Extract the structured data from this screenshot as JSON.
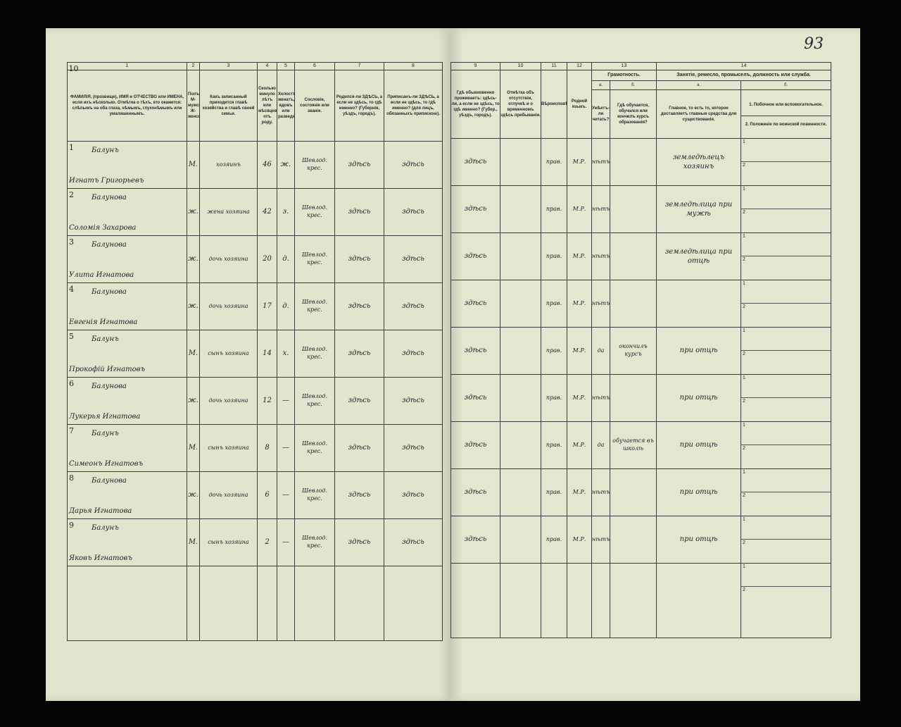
{
  "page_number": "93",
  "left_columns": [
    {
      "num": "1",
      "header": "ФАМИЛІЯ, (прозвище), ИМЯ и ОТЧЕСТВО или ИМЕНА, если ихъ нѣсколько. Отмѣтка о тѣхъ, кто окажется: слѣпымъ на оба глаза, нѣмымъ, глухонѣмымъ или умалишеннымъ."
    },
    {
      "num": "2",
      "header": "Полъ. М-мужской. Ж-женский."
    },
    {
      "num": "3",
      "header": "Какъ записанный приходится главѣ хозяйства и главѣ своей семьи."
    },
    {
      "num": "4",
      "header": "Сколько минуло лѣтъ или мѣсяцевъ отъ роду."
    },
    {
      "num": "5",
      "header": "Холостъ, женатъ, вдовъ или разведенъ."
    },
    {
      "num": "6",
      "header": "Сословіе, состояніе или званіе."
    },
    {
      "num": "7",
      "header": "Родился-ли ЗДѢСЬ, а если не здѣсь, то гдѣ именно? (Губернія, уѣздъ, городъ)."
    },
    {
      "num": "8",
      "header": "Приписанъ-ли ЗДѢСЬ, а если не здѣсь, то гдѣ именно? (для лицъ, обязанныхъ припискою)."
    }
  ],
  "right_columns": [
    {
      "num": "9",
      "header": "Гдѣ обыкновенно проживаетъ: здѣсь-ли, а если не здѣсь, то гдѣ именно? (Губер., уѣздъ, городъ)."
    },
    {
      "num": "10",
      "header": "Отмѣтка объ отсутствіи, отлучкѣ и о временномъ здѣсь пребываніи."
    },
    {
      "num": "11",
      "header": "Вѣроисповѣданіе."
    },
    {
      "num": "12",
      "header": "Родной языкъ."
    },
    {
      "num": "13",
      "group": "Грамотность.",
      "sub_a": "а.",
      "sub_b": "б.",
      "header_a": "Умѣетъ-ли читать?",
      "header_b": "Гдѣ обучается, обучался или кончилъ курсъ образованія?"
    },
    {
      "num": "14",
      "group": "Занятіе, ремесло, промыселъ, должность или служба.",
      "sub_a": "а.",
      "sub_b": "б.",
      "header_a": "Главное, то есть то, которое доставляетъ главныя средства для существованія.",
      "header_b_1": "1. Побочное или вспомогательное.",
      "header_b_2": "2. Положеніе по воинской повинности."
    }
  ],
  "rows": [
    {
      "n": "1",
      "surname": "Балунъ",
      "given": "Игнатъ Григорьевъ",
      "sex": "М.",
      "relation": "хозяинъ",
      "age": "46",
      "marital": "ж.",
      "estate": "Шевлод. крес.",
      "born": "здѣсь",
      "registered": "здѣсь",
      "lives": "здѣсь",
      "absence": "",
      "religion": "прав.",
      "language": "М.Р.",
      "literate": "нѣтъ",
      "school": "",
      "occupation": "земледѣлецъ хозяинъ"
    },
    {
      "n": "2",
      "surname": "Балунова",
      "given": "Соломія Захарова",
      "sex": "ж.",
      "relation": "жена хозяина",
      "age": "42",
      "marital": "з.",
      "estate": "Шевлод. крес.",
      "born": "здѣсь",
      "registered": "здѣсь",
      "lives": "здѣсь",
      "absence": "",
      "religion": "прав.",
      "language": "М.Р.",
      "literate": "нѣтъ",
      "school": "",
      "occupation": "земледѣлица при мужѣ"
    },
    {
      "n": "3",
      "surname": "Балунова",
      "given": "Улита Игнатова",
      "sex": "ж.",
      "relation": "дочь хозяина",
      "age": "20",
      "marital": "д.",
      "estate": "Шевлод. крес.",
      "born": "здѣсь",
      "registered": "здѣсь",
      "lives": "здѣсь",
      "absence": "",
      "religion": "прав.",
      "language": "М.Р.",
      "literate": "нѣтъ",
      "school": "",
      "occupation": "земледѣлица при отцѣ"
    },
    {
      "n": "4",
      "surname": "Балунова",
      "given": "Евгенія Игнатова",
      "sex": "ж.",
      "relation": "дочь хозяина",
      "age": "17",
      "marital": "д.",
      "estate": "Шевлод. крес.",
      "born": "здѣсь",
      "registered": "здѣсь",
      "lives": "здѣсь",
      "absence": "",
      "religion": "прав.",
      "language": "М.Р.",
      "literate": "нѣтъ",
      "school": "",
      "occupation": ""
    },
    {
      "n": "5",
      "surname": "Балунъ",
      "given": "Прокофій Игнатовъ",
      "sex": "М.",
      "relation": "сынъ хозяина",
      "age": "14",
      "marital": "х.",
      "estate": "Шевлод. крес.",
      "born": "здѣсь",
      "registered": "здѣсь",
      "lives": "здѣсь",
      "absence": "",
      "religion": "прав.",
      "language": "М.Р.",
      "literate": "да",
      "school": "окончилъ курсъ",
      "occupation": "при отцѣ"
    },
    {
      "n": "6",
      "surname": "Балунова",
      "given": "Лукерья Игнатова",
      "sex": "ж.",
      "relation": "дочь хозяина",
      "age": "12",
      "marital": "—",
      "estate": "Шевлод. крес.",
      "born": "здѣсь",
      "registered": "здѣсь",
      "lives": "здѣсь",
      "absence": "",
      "religion": "прав.",
      "language": "М.Р.",
      "literate": "нѣтъ",
      "school": "",
      "occupation": "при отцѣ"
    },
    {
      "n": "7",
      "surname": "Балунъ",
      "given": "Симеонъ Игнатовъ",
      "sex": "М.",
      "relation": "сынъ хозяина",
      "age": "8",
      "marital": "—",
      "estate": "Шевлод. крес.",
      "born": "здѣсь",
      "registered": "здѣсь",
      "lives": "здѣсь",
      "absence": "",
      "religion": "прав.",
      "language": "М.Р.",
      "literate": "да",
      "school": "обучается въ школѣ",
      "occupation": "при отцѣ"
    },
    {
      "n": "8",
      "surname": "Балунова",
      "given": "Дарья Игнатова",
      "sex": "ж.",
      "relation": "дочь хозяина",
      "age": "6",
      "marital": "—",
      "estate": "Шевлод. крес.",
      "born": "здѣсь",
      "registered": "здѣсь",
      "lives": "здѣсь",
      "absence": "",
      "religion": "прав.",
      "language": "М.Р.",
      "literate": "нѣтъ",
      "school": "",
      "occupation": "при отцѣ"
    },
    {
      "n": "9",
      "surname": "Балунъ",
      "given": "Яковъ Игнатовъ",
      "sex": "М.",
      "relation": "сынъ хозяина",
      "age": "2",
      "marital": "—",
      "estate": "Шевлод. крес.",
      "born": "здѣсь",
      "registered": "здѣсь",
      "lives": "здѣсь",
      "absence": "",
      "religion": "прав.",
      "language": "М.Р.",
      "literate": "нѣтъ",
      "school": "",
      "occupation": "при отцѣ"
    }
  ],
  "last_row_number": "10",
  "sub_labels": [
    "1",
    "2"
  ],
  "colors": {
    "paper": "#e2e4cd",
    "ink": "#23232c",
    "background": "#050505"
  }
}
